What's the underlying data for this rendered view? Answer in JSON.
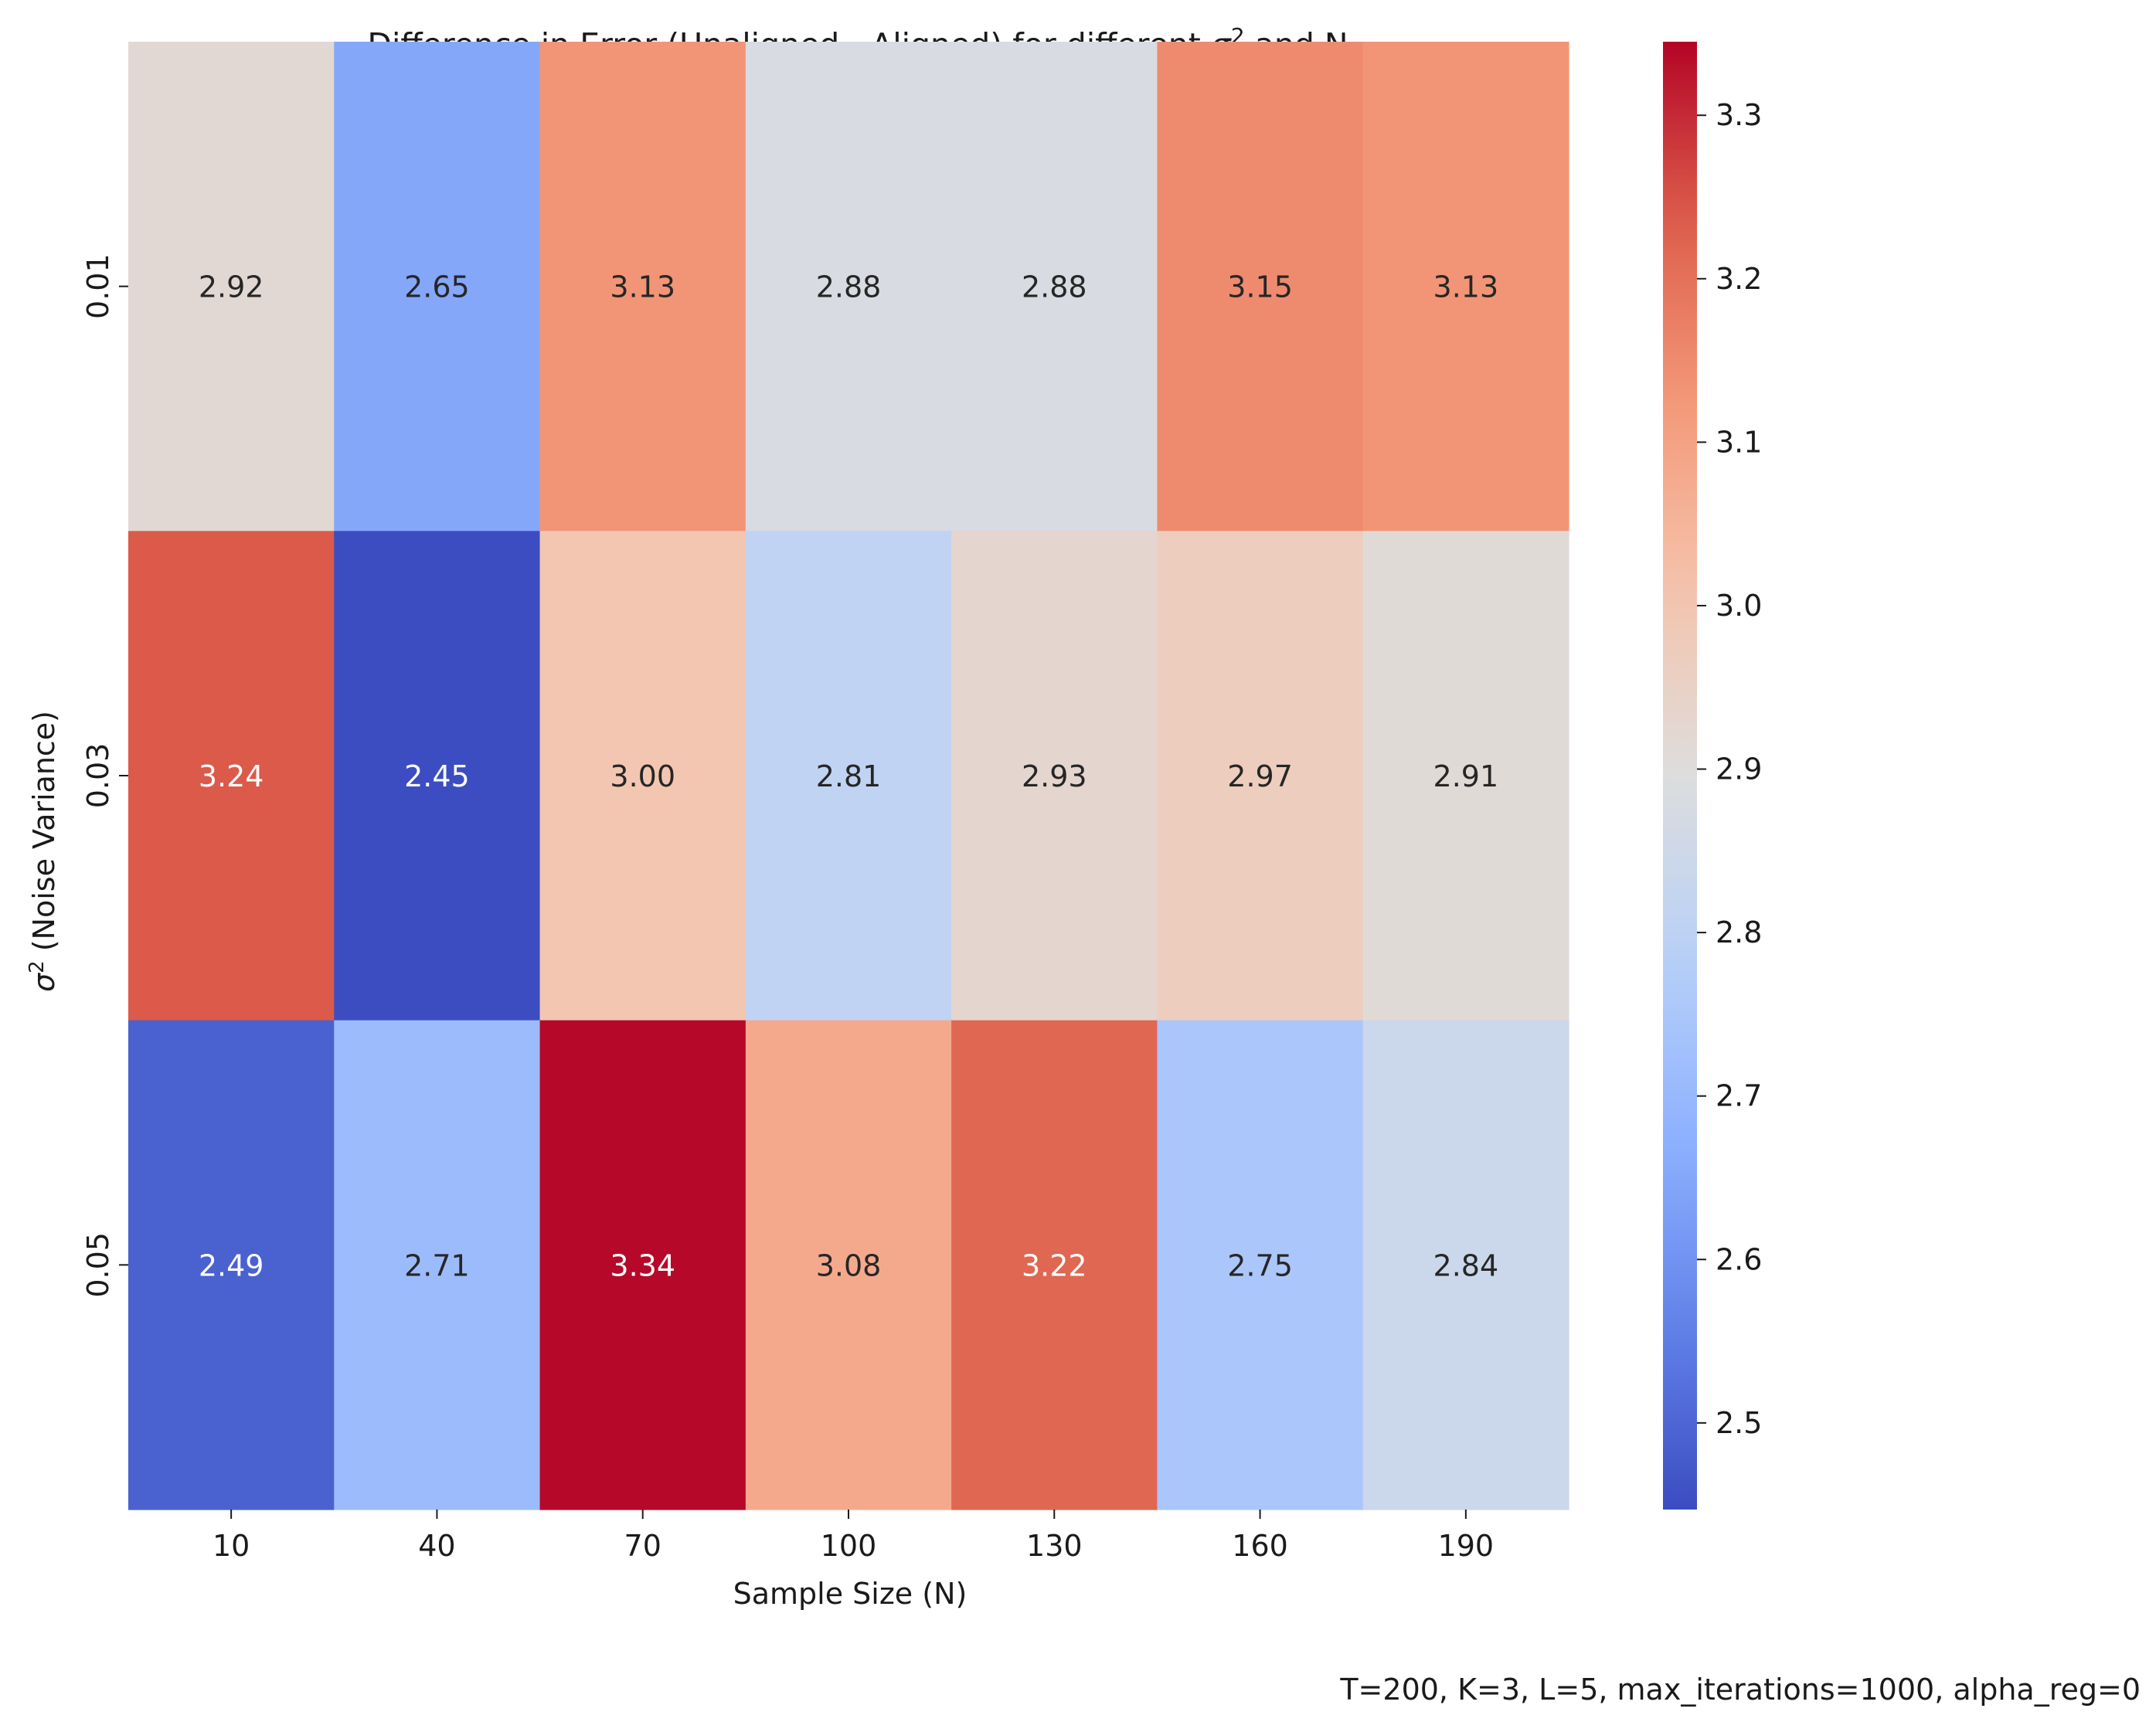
{
  "chart_data": {
    "type": "heatmap",
    "title_prefix": "Difference in Error (Unaligned - Aligned) for different ",
    "title_symbol": "σ",
    "title_sup": "2",
    "title_suffix": " and N",
    "xlabel": "Sample Size (N)",
    "ylabel_symbol": "σ",
    "ylabel_sup": "2",
    "ylabel_suffix": " (Noise Variance)",
    "x_categories": [
      "10",
      "40",
      "70",
      "100",
      "130",
      "160",
      "190"
    ],
    "y_categories": [
      "0.01",
      "0.03",
      "0.05"
    ],
    "values": [
      [
        2.92,
        2.65,
        3.13,
        2.88,
        2.88,
        3.15,
        3.13
      ],
      [
        3.24,
        2.45,
        3.0,
        2.81,
        2.93,
        2.97,
        2.91
      ],
      [
        2.49,
        2.71,
        3.34,
        3.08,
        3.22,
        2.75,
        2.84
      ]
    ],
    "value_format": "2 decimals",
    "colormap": "coolwarm",
    "vmin": 2.447,
    "vmax": 3.345,
    "colorbar_ticks": [
      2.5,
      2.6,
      2.7,
      2.8,
      2.9,
      3.0,
      3.1,
      3.2,
      3.3
    ],
    "colorbar_tick_labels": [
      "2.5",
      "2.6",
      "2.7",
      "2.8",
      "2.9",
      "3.0",
      "3.1",
      "3.2",
      "3.3"
    ],
    "footnote": "T=200, K=3, L=5, max_iterations=1000, alpha_reg=0"
  }
}
